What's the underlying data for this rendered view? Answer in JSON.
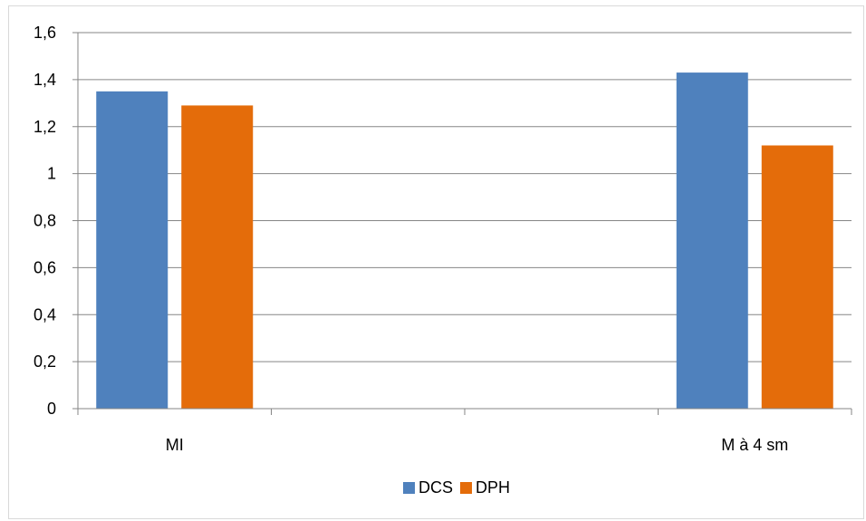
{
  "chart_data": {
    "type": "bar",
    "title": "",
    "xlabel": "",
    "ylabel": "",
    "categories": [
      "MI",
      "M à  4 sm"
    ],
    "series": [
      {
        "name": "DCS",
        "values": [
          1.35,
          1.43
        ],
        "color": "#4f81bd"
      },
      {
        "name": "DPH",
        "values": [
          1.29,
          1.12
        ],
        "color": "#e46c0a"
      }
    ],
    "ylim": [
      0,
      1.6
    ],
    "yticks": [
      "0",
      "0,2",
      "0,4",
      "0,6",
      "0,8",
      "1",
      "1,2",
      "1,4",
      "1,6"
    ],
    "grid": true,
    "legend_position": "bottom"
  }
}
